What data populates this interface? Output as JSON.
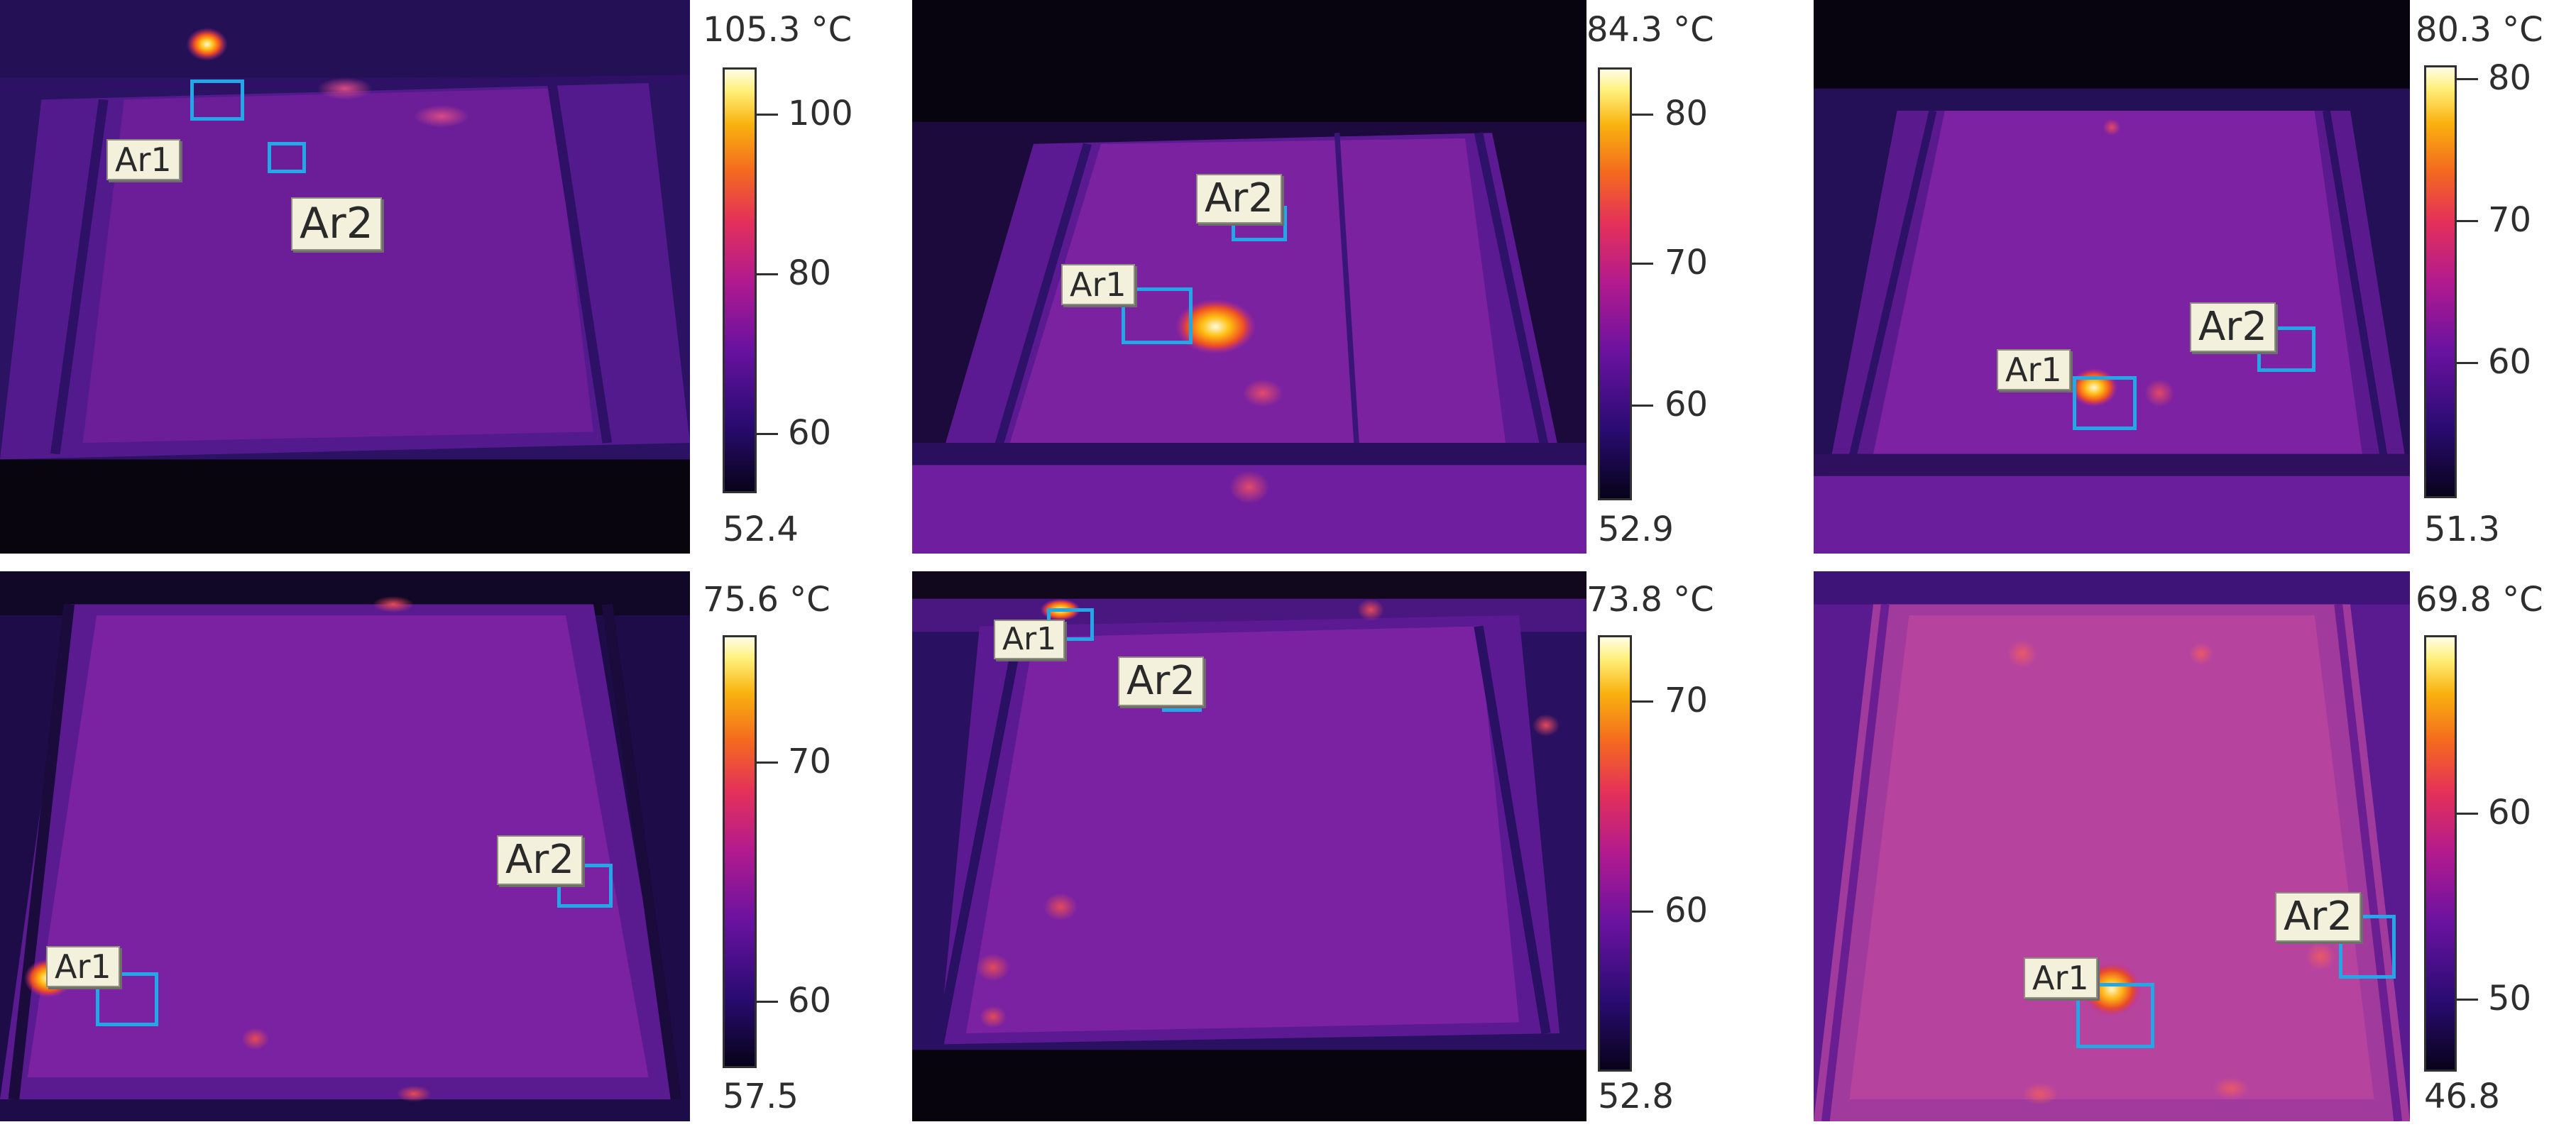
{
  "panels": [
    {
      "max_label": "105.3 °C",
      "min_label": "52.4",
      "ticks": [
        {
          "label": "100",
          "value": 100
        },
        {
          "label": "80",
          "value": 80
        },
        {
          "label": "60",
          "value": 60
        }
      ],
      "areas": [
        {
          "label": "Ar1"
        },
        {
          "label": "Ar2"
        }
      ]
    },
    {
      "max_label": "84.3 °C",
      "min_label": "52.9",
      "ticks": [
        {
          "label": "80",
          "value": 80
        },
        {
          "label": "70",
          "value": 70
        },
        {
          "label": "60",
          "value": 60
        }
      ],
      "areas": [
        {
          "label": "Ar1"
        },
        {
          "label": "Ar2"
        }
      ]
    },
    {
      "max_label": "80.3 °C",
      "min_label": "51.3",
      "ticks": [
        {
          "label": "80",
          "value": 80
        },
        {
          "label": "70",
          "value": 70
        },
        {
          "label": "60",
          "value": 60
        }
      ],
      "areas": [
        {
          "label": "Ar1"
        },
        {
          "label": "Ar2"
        }
      ]
    },
    {
      "max_label": "75.6 °C",
      "min_label": "57.5",
      "ticks": [
        {
          "label": "70",
          "value": 70
        },
        {
          "label": "60",
          "value": 60
        }
      ],
      "areas": [
        {
          "label": "Ar1"
        },
        {
          "label": "Ar2"
        }
      ]
    },
    {
      "max_label": "73.8 °C",
      "min_label": "52.8",
      "ticks": [
        {
          "label": "70",
          "value": 70
        },
        {
          "label": "60",
          "value": 60
        }
      ],
      "areas": [
        {
          "label": "Ar1"
        },
        {
          "label": "Ar2"
        }
      ]
    },
    {
      "max_label": "69.8 °C",
      "min_label": "46.8",
      "ticks": [
        {
          "label": "60",
          "value": 60
        },
        {
          "label": "50",
          "value": 50
        }
      ],
      "areas": [
        {
          "label": "Ar1"
        },
        {
          "label": "Ar2"
        }
      ]
    }
  ],
  "colors": {
    "roi_box": "#22a8e6",
    "label_bg": "#f3f1dc"
  }
}
